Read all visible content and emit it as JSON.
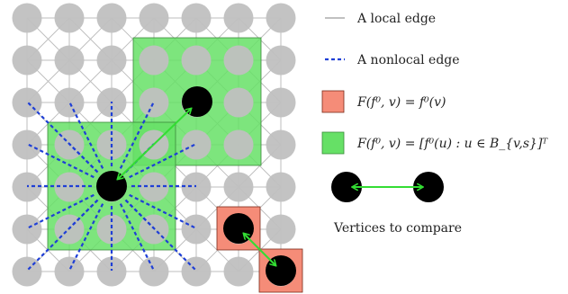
{
  "legend": {
    "local_edge": "A local edge",
    "nonlocal_edge": "A nonlocal edge",
    "red_patch_formula": "F(f⁰, v) = f⁰(v)",
    "green_patch_formula": "F(f⁰, v) = [f⁰(u) : u ∈ B_{v,s}]ᵀ",
    "compare_caption": "Vertices to compare"
  },
  "colors": {
    "vertex_gray": "#c0c0c0",
    "local_edge": "#bdbdbd",
    "nonlocal_edge": "#1f3fd6",
    "patch_green": "#66e066",
    "patch_red": "#f58c78",
    "compare_arrow": "#33dd33",
    "vertex_black": "#000000"
  }
}
